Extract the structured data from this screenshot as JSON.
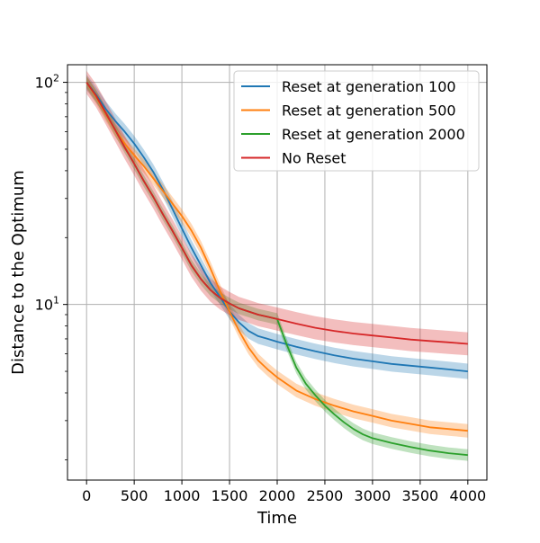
{
  "chart_data": {
    "type": "line",
    "title": "",
    "xlabel": "Time",
    "ylabel": "Distance to the Optimum",
    "xlim": [
      -200,
      4200
    ],
    "ylim": [
      1.62,
      120
    ],
    "y_scale": "log",
    "grid": true,
    "legend_position": "top-right",
    "x_ticks": [
      0,
      500,
      1000,
      1500,
      2000,
      2500,
      3000,
      3500,
      4000
    ],
    "x_tick_labels": [
      "0",
      "500",
      "1000",
      "1500",
      "2000",
      "2500",
      "3000",
      "3500",
      "4000"
    ],
    "y_ticks": [
      10,
      100
    ],
    "y_tick_base": "10",
    "y_tick_exponents": [
      "1",
      "2"
    ],
    "series": [
      {
        "name": "Reset at generation 100",
        "color": "#1f77b4",
        "x": [
          0,
          100,
          200,
          300,
          400,
          500,
          600,
          700,
          800,
          900,
          1000,
          1100,
          1200,
          1300,
          1400,
          1500,
          1600,
          1700,
          1800,
          1900,
          2000,
          2200,
          2400,
          2600,
          2800,
          3000,
          3200,
          3400,
          3600,
          3800,
          4000
        ],
        "y": [
          100,
          88,
          76,
          67,
          60,
          53,
          46,
          39.5,
          33,
          27,
          22,
          18,
          15,
          12.5,
          10.8,
          9.3,
          8.3,
          7.6,
          7.2,
          7.0,
          6.8,
          6.45,
          6.15,
          5.9,
          5.7,
          5.55,
          5.4,
          5.3,
          5.2,
          5.1,
          5.0
        ],
        "band": 0.08
      },
      {
        "name": "Reset at generation 500",
        "color": "#ff7f0e",
        "x": [
          0,
          100,
          200,
          300,
          400,
          500,
          600,
          700,
          800,
          900,
          1000,
          1100,
          1200,
          1300,
          1400,
          1500,
          1600,
          1700,
          1800,
          1900,
          2000,
          2200,
          2400,
          2600,
          2800,
          3000,
          3200,
          3400,
          3600,
          3800,
          4000
        ],
        "y": [
          100,
          86,
          72,
          61,
          53,
          47,
          42,
          37,
          32.5,
          28.5,
          25,
          21.5,
          18,
          14.5,
          11.5,
          9.3,
          7.6,
          6.4,
          5.6,
          5.1,
          4.7,
          4.1,
          3.75,
          3.5,
          3.3,
          3.15,
          3.0,
          2.9,
          2.8,
          2.75,
          2.7
        ],
        "band": 0.07
      },
      {
        "name": "Reset at generation 2000",
        "color": "#2ca02c",
        "x": [
          0,
          100,
          200,
          300,
          400,
          500,
          600,
          700,
          800,
          900,
          1000,
          1100,
          1200,
          1300,
          1400,
          1500,
          1600,
          1700,
          1800,
          1900,
          2000,
          2100,
          2200,
          2300,
          2400,
          2500,
          2600,
          2700,
          2800,
          2900,
          3000,
          3200,
          3400,
          3600,
          3800,
          4000
        ],
        "y": [
          100,
          87,
          73,
          61,
          51,
          43,
          36,
          30.5,
          25.5,
          21.5,
          18,
          15,
          13,
          11.6,
          10.7,
          10.1,
          9.6,
          9.3,
          9.0,
          8.8,
          8.6,
          6.6,
          5.2,
          4.4,
          3.9,
          3.5,
          3.2,
          2.95,
          2.75,
          2.6,
          2.5,
          2.38,
          2.28,
          2.2,
          2.14,
          2.1
        ],
        "band": 0.06
      },
      {
        "name": "No Reset",
        "color": "#d62728",
        "x": [
          0,
          100,
          200,
          300,
          400,
          500,
          600,
          700,
          800,
          900,
          1000,
          1100,
          1200,
          1300,
          1400,
          1500,
          1600,
          1700,
          1800,
          1900,
          2000,
          2200,
          2400,
          2600,
          2800,
          3000,
          3200,
          3400,
          3600,
          3800,
          4000
        ],
        "y": [
          100,
          87,
          73,
          61,
          51,
          43,
          36,
          30.5,
          25.5,
          21.5,
          18,
          15,
          13,
          11.6,
          10.7,
          10.1,
          9.6,
          9.3,
          9.0,
          8.8,
          8.6,
          8.2,
          7.85,
          7.6,
          7.4,
          7.25,
          7.1,
          6.95,
          6.85,
          6.75,
          6.65
        ],
        "band": 0.12
      }
    ]
  }
}
